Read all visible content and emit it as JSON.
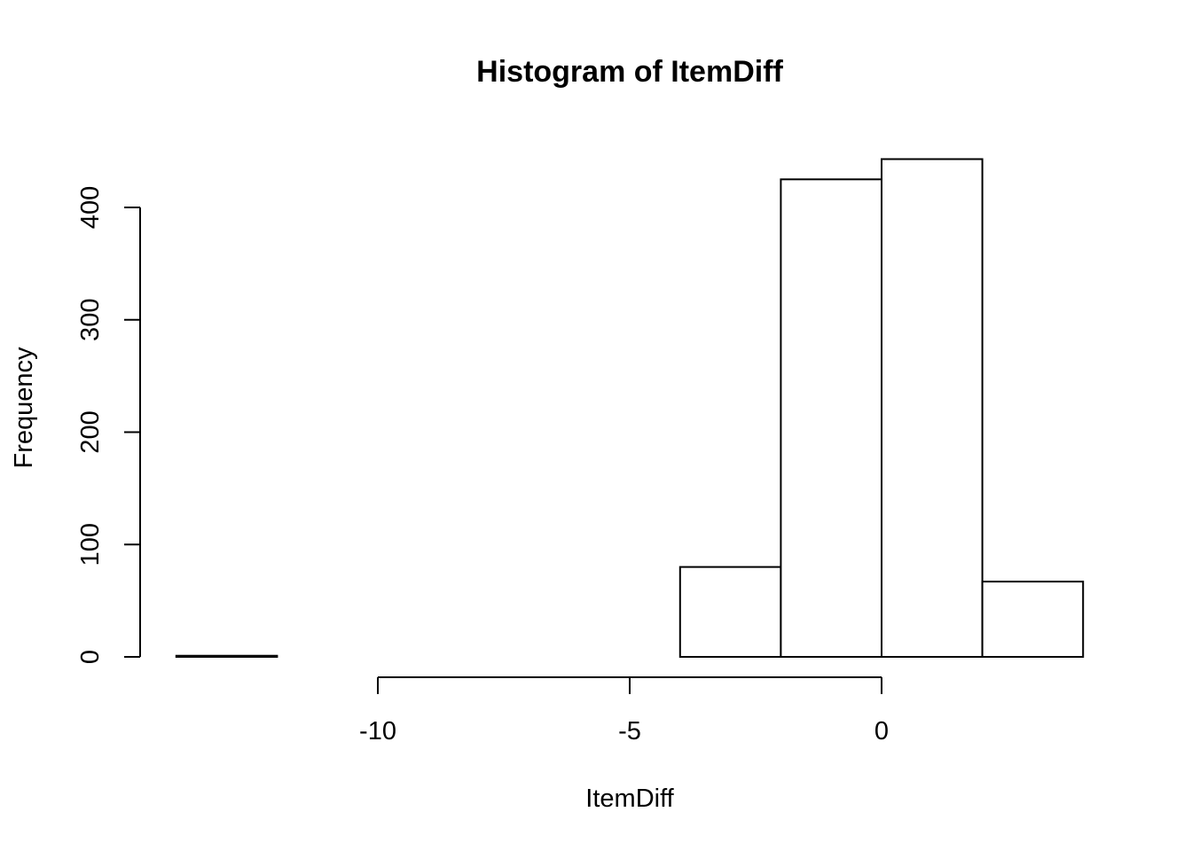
{
  "chart_data": {
    "type": "bar",
    "title": "Histogram of ItemDiff",
    "xlabel": "ItemDiff",
    "ylabel": "Frequency",
    "bins": [
      {
        "x0": -14,
        "x1": -12,
        "count": 1
      },
      {
        "x0": -12,
        "x1": -10,
        "count": 0
      },
      {
        "x0": -10,
        "x1": -8,
        "count": 0
      },
      {
        "x0": -8,
        "x1": -6,
        "count": 0
      },
      {
        "x0": -6,
        "x1": -4,
        "count": 0
      },
      {
        "x0": -4,
        "x1": -2,
        "count": 80
      },
      {
        "x0": -2,
        "x1": 0,
        "count": 425
      },
      {
        "x0": 0,
        "x1": 2,
        "count": 443
      },
      {
        "x0": 2,
        "x1": 4,
        "count": 67
      }
    ],
    "xticks": [
      -10,
      -5,
      0
    ],
    "xtick_labels": [
      "-10",
      "-5",
      "0"
    ],
    "yticks": [
      0,
      100,
      200,
      300,
      400
    ],
    "ytick_labels": [
      "0",
      "100",
      "200",
      "300",
      "400"
    ],
    "xlim": [
      -14,
      4
    ],
    "ylim": [
      0,
      443
    ],
    "grid": false
  }
}
